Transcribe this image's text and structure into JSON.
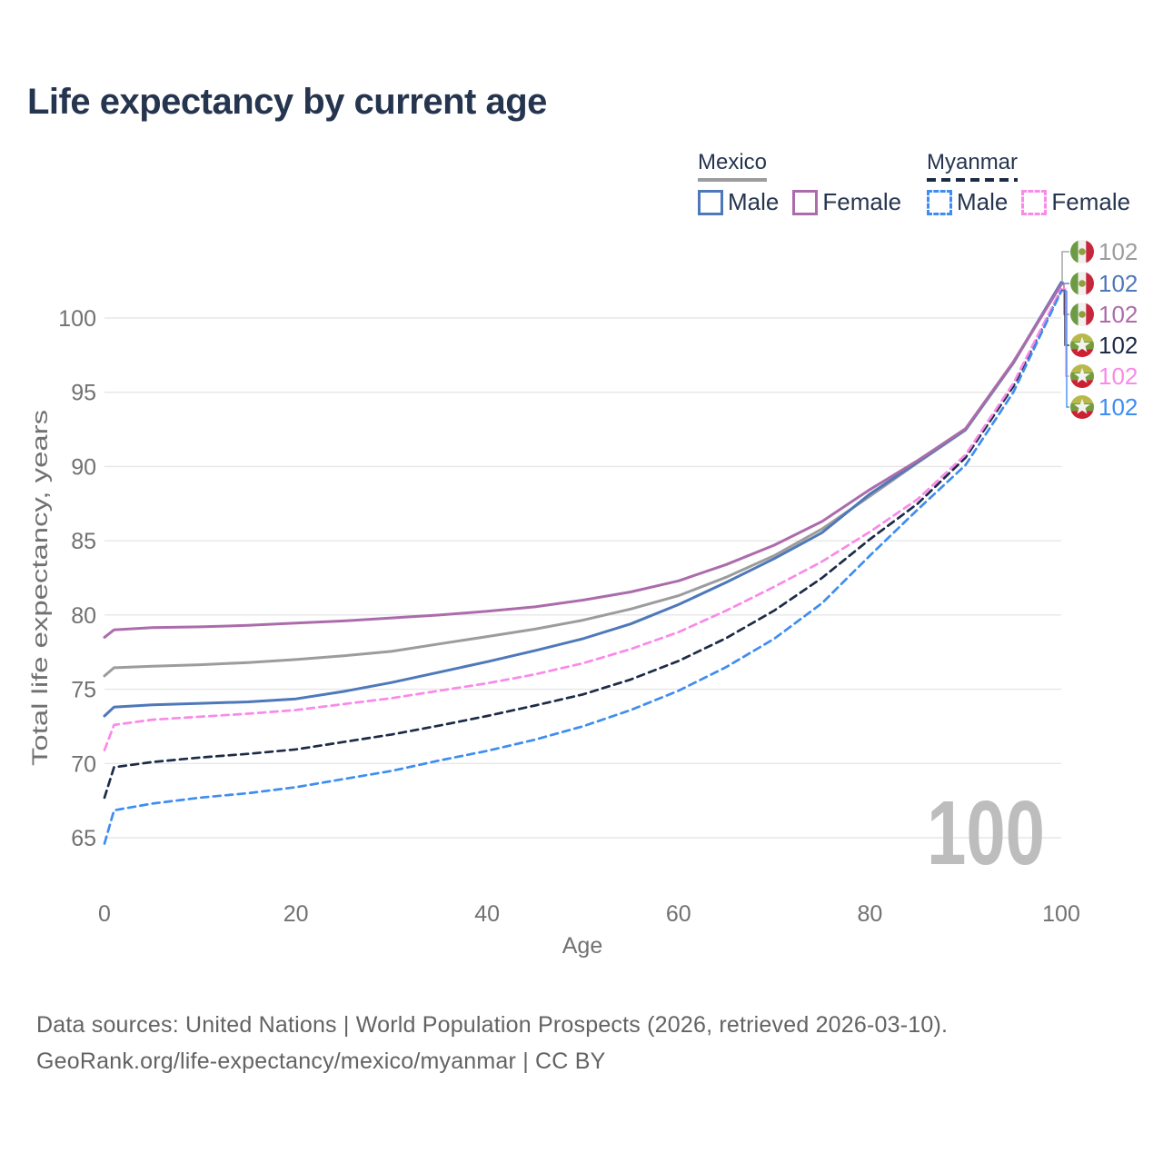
{
  "title": "Life expectancy by current age",
  "watermark": "100",
  "legend": {
    "groups": [
      {
        "country": "Mexico",
        "line_style": "solid",
        "line_color": "#9c9c9c",
        "male_label": "Male",
        "male_color": "#4d78ba",
        "female_label": "Female",
        "female_color": "#ac6cab"
      },
      {
        "country": "Myanmar",
        "line_style": "dashed",
        "line_color": "#1c2b47",
        "male_label": "Male",
        "male_color": "#3e8df1",
        "female_label": "Female",
        "female_color": "#f98ae8"
      }
    ]
  },
  "footer": {
    "line1": "Data sources: United Nations | World Population Prospects (2026, retrieved 2026-03-10).",
    "line2": "GeoRank.org/life-expectancy/mexico/myanmar | CC BY"
  },
  "chart_data": {
    "type": "line",
    "title": "Life expectancy by current age",
    "xlabel": "Age",
    "ylabel": "Total life expectancy, years",
    "xlim": [
      0,
      100
    ],
    "ylim": [
      63.5,
      103
    ],
    "xticks": [
      0,
      20,
      40,
      60,
      80,
      100
    ],
    "yticks": [
      65,
      70,
      75,
      80,
      85,
      90,
      95,
      100
    ],
    "grid": "horizontal-only",
    "legend_position": "top-right",
    "watermark_age": "100",
    "ages": [
      0,
      1,
      5,
      10,
      15,
      20,
      25,
      30,
      35,
      40,
      45,
      50,
      55,
      60,
      65,
      70,
      75,
      80,
      85,
      90,
      95,
      100
    ],
    "series": [
      {
        "name": "Mexico",
        "id": "mexico-total",
        "flag": "mexico",
        "color": "#9c9c9c",
        "dashed": false,
        "end_label": "102",
        "values": [
          75.9,
          76.45,
          76.55,
          76.65,
          76.8,
          77.0,
          77.25,
          77.55,
          78.05,
          78.55,
          79.05,
          79.65,
          80.4,
          81.3,
          82.55,
          84.0,
          85.8,
          88.0,
          90.25,
          92.45,
          96.95,
          102.3
        ]
      },
      {
        "name": "Mexico Male",
        "id": "mexico-male",
        "flag": "mexico",
        "color": "#4d78ba",
        "dashed": false,
        "end_label": "102",
        "values": [
          73.2,
          73.8,
          73.95,
          74.05,
          74.15,
          74.35,
          74.85,
          75.45,
          76.15,
          76.85,
          77.6,
          78.4,
          79.4,
          80.7,
          82.2,
          83.8,
          85.55,
          88.15,
          90.3,
          92.5,
          97.0,
          102.4
        ]
      },
      {
        "name": "Mexico Female",
        "id": "mexico-female",
        "flag": "mexico",
        "color": "#ac6cab",
        "dashed": false,
        "end_label": "102",
        "values": [
          78.5,
          79.0,
          79.15,
          79.2,
          79.3,
          79.45,
          79.6,
          79.8,
          80.0,
          80.25,
          80.55,
          81.0,
          81.55,
          82.3,
          83.4,
          84.7,
          86.3,
          88.45,
          90.4,
          92.55,
          97.05,
          102.25
        ]
      },
      {
        "name": "Myanmar",
        "id": "myanmar-total",
        "flag": "myanmar",
        "color": "#1c2b47",
        "dashed": true,
        "end_label": "102",
        "values": [
          67.7,
          69.75,
          70.1,
          70.4,
          70.65,
          70.95,
          71.45,
          71.95,
          72.55,
          73.2,
          73.9,
          74.65,
          75.65,
          76.9,
          78.45,
          80.3,
          82.5,
          85.1,
          87.5,
          90.6,
          95.4,
          101.9
        ]
      },
      {
        "name": "Myanmar Female",
        "id": "myanmar-female",
        "flag": "myanmar",
        "color": "#f98ae8",
        "dashed": true,
        "end_label": "102",
        "values": [
          70.9,
          72.6,
          72.95,
          73.15,
          73.35,
          73.6,
          74.0,
          74.4,
          74.9,
          75.4,
          76.0,
          76.75,
          77.7,
          78.85,
          80.3,
          81.9,
          83.6,
          85.6,
          87.8,
          90.8,
          95.6,
          101.95
        ]
      },
      {
        "name": "Myanmar Male",
        "id": "myanmar-male",
        "flag": "myanmar",
        "color": "#3e8df1",
        "dashed": true,
        "end_label": "102",
        "values": [
          64.6,
          66.85,
          67.3,
          67.7,
          68.0,
          68.4,
          68.95,
          69.5,
          70.2,
          70.85,
          71.6,
          72.5,
          73.6,
          74.9,
          76.5,
          78.4,
          80.8,
          84.0,
          87.1,
          90.1,
          95.0,
          101.8
        ]
      }
    ],
    "flag_colors": {
      "mexico": {
        "green": "#6d9b45",
        "white": "#f2f0ec",
        "red": "#c6273c",
        "emblem": "#8f9c3f"
      },
      "myanmar": {
        "yellow": "#b9b94a",
        "green": "#729d3f",
        "red": "#cc2133",
        "star": "#f4f2ee"
      }
    },
    "axis_colors": {
      "tick_text": "#717171",
      "gridline": "#e7e7e7",
      "watermark": "#bdbdbd"
    }
  }
}
